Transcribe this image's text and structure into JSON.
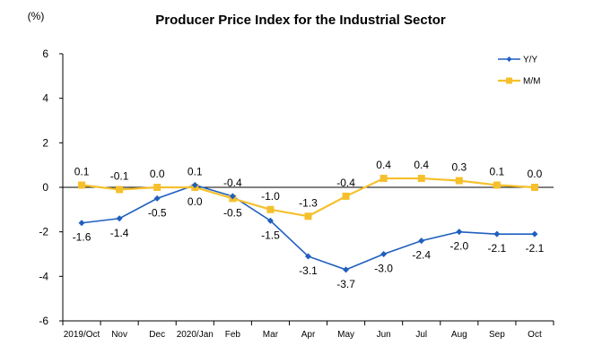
{
  "chart_data": {
    "type": "line",
    "title": "Producer Price Index for the Industrial Sector",
    "unit_label": "(%)",
    "categories": [
      "2019/Oct",
      "Nov",
      "Dec",
      "2020/Jan",
      "Feb",
      "Mar",
      "Apr",
      "May",
      "Jun",
      "Jul",
      "Aug",
      "Sep",
      "Oct"
    ],
    "ylim": [
      -6,
      6
    ],
    "yticks": [
      6,
      4,
      2,
      0,
      -2,
      -4,
      -6
    ],
    "grid": false,
    "legend_position": "top-right",
    "series": [
      {
        "name": "Y/Y",
        "color": "#1f5fbf",
        "marker": "diamond",
        "values": [
          -1.6,
          -1.4,
          -0.5,
          0.1,
          -0.4,
          -1.5,
          -3.1,
          -3.7,
          -3.0,
          -2.4,
          -2.0,
          -2.1,
          -2.1
        ],
        "labels": [
          "-1.6",
          "-1.4",
          "-0.5",
          "0.1",
          "-0.4",
          "-1.5",
          "-3.1",
          "-3.7",
          "-3.0",
          "-2.4",
          "-2.0",
          "-2.1",
          "-2.1"
        ]
      },
      {
        "name": "M/M",
        "color": "#f5c02c",
        "marker": "square",
        "values": [
          0.1,
          -0.1,
          0.0,
          0.0,
          -0.5,
          -1.0,
          -1.3,
          -0.4,
          0.4,
          0.4,
          0.3,
          0.1,
          0.0
        ],
        "labels": [
          "0.1",
          "-0.1",
          "0.0",
          "0.0",
          "-0.5",
          "-1.0",
          "-1.3",
          "-0.4",
          "0.4",
          "0.4",
          "0.3",
          "0.1",
          "0.0"
        ]
      }
    ]
  }
}
